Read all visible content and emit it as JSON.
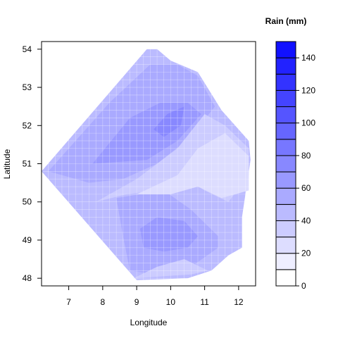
{
  "chart_data": {
    "type": "filled-contour",
    "title": "",
    "xlabel": "Longitude",
    "ylabel": "Latitude",
    "xlim": [
      6.2,
      12.5
    ],
    "ylim": [
      47.8,
      54.2
    ],
    "x_ticks": [
      7,
      8,
      9,
      10,
      11,
      12
    ],
    "y_ticks": [
      48,
      49,
      50,
      51,
      52,
      53,
      54
    ],
    "grid": true,
    "colorbar": {
      "title": "Rain (mm)",
      "range": [
        0,
        150
      ],
      "breaks": [
        0,
        10,
        20,
        30,
        40,
        50,
        60,
        70,
        80,
        90,
        100,
        110,
        120,
        130,
        140,
        150
      ],
      "tick_labels": [
        "0",
        "20",
        "40",
        "60",
        "80",
        "100",
        "120",
        "140"
      ],
      "tick_values": [
        0,
        20,
        40,
        60,
        80,
        100,
        120,
        140
      ],
      "low_color": "#ffffff",
      "high_color": "#0000ff"
    },
    "regions": [
      {
        "level": 40,
        "polygon": [
          [
            6.2,
            50.8
          ],
          [
            9.3,
            54.0
          ],
          [
            9.6,
            54.0
          ],
          [
            10.0,
            53.7
          ],
          [
            10.8,
            53.4
          ],
          [
            11.5,
            52.4
          ],
          [
            12.3,
            51.6
          ],
          [
            12.35,
            51.1
          ],
          [
            12.1,
            49.6
          ],
          [
            12.1,
            48.8
          ],
          [
            11.7,
            48.6
          ],
          [
            11.2,
            48.2
          ],
          [
            10.5,
            48.0
          ],
          [
            9.0,
            47.95
          ],
          [
            6.2,
            50.8
          ]
        ]
      },
      {
        "level": 50,
        "polygon": [
          [
            6.4,
            50.8
          ],
          [
            8.2,
            52.6
          ],
          [
            9.4,
            53.6
          ],
          [
            10.2,
            53.6
          ],
          [
            10.8,
            53.3
          ],
          [
            11.3,
            52.5
          ],
          [
            10.6,
            51.7
          ],
          [
            9.6,
            51.0
          ],
          [
            8.6,
            50.6
          ],
          [
            7.6,
            50.5
          ],
          [
            6.4,
            50.8
          ]
        ]
      },
      {
        "level": 50,
        "polygon": [
          [
            8.4,
            50.1
          ],
          [
            9.8,
            50.3
          ],
          [
            10.6,
            49.8
          ],
          [
            11.4,
            49.1
          ],
          [
            11.4,
            48.8
          ],
          [
            10.6,
            48.3
          ],
          [
            9.6,
            48.1
          ],
          [
            8.8,
            48.2
          ],
          [
            8.6,
            49.1
          ],
          [
            8.4,
            50.1
          ]
        ]
      },
      {
        "level": 60,
        "polygon": [
          [
            7.7,
            51.0
          ],
          [
            8.8,
            52.2
          ],
          [
            9.7,
            52.6
          ],
          [
            10.5,
            52.6
          ],
          [
            10.9,
            52.3
          ],
          [
            10.2,
            51.6
          ],
          [
            9.3,
            51.1
          ],
          [
            7.7,
            51.0
          ]
        ]
      },
      {
        "level": 70,
        "polygon": [
          [
            9.5,
            51.9
          ],
          [
            9.9,
            52.3
          ],
          [
            10.4,
            52.5
          ],
          [
            10.3,
            52.0
          ],
          [
            9.8,
            51.7
          ],
          [
            9.5,
            51.9
          ]
        ]
      },
      {
        "level": 60,
        "polygon": [
          [
            9.1,
            49.3
          ],
          [
            9.6,
            49.6
          ],
          [
            10.4,
            49.5
          ],
          [
            10.8,
            49.1
          ],
          [
            10.5,
            48.8
          ],
          [
            9.8,
            48.7
          ],
          [
            9.2,
            48.8
          ],
          [
            9.1,
            49.3
          ]
        ]
      },
      {
        "level": 30,
        "polygon": [
          [
            7.8,
            50.0
          ],
          [
            9.0,
            50.6
          ],
          [
            10.2,
            51.4
          ],
          [
            11.0,
            52.3
          ],
          [
            11.6,
            52.0
          ],
          [
            12.3,
            51.4
          ],
          [
            12.3,
            50.7
          ],
          [
            11.7,
            50.0
          ],
          [
            11.0,
            50.3
          ],
          [
            10.5,
            50.6
          ],
          [
            9.6,
            50.3
          ],
          [
            8.7,
            50.2
          ],
          [
            7.8,
            50.0
          ]
        ]
      },
      {
        "level": 20,
        "polygon": [
          [
            9.0,
            50.2
          ],
          [
            10.2,
            50.7
          ],
          [
            10.8,
            51.4
          ],
          [
            11.6,
            51.8
          ],
          [
            12.3,
            51.2
          ],
          [
            12.3,
            50.3
          ],
          [
            11.5,
            50.1
          ],
          [
            10.8,
            50.4
          ],
          [
            10.0,
            50.2
          ],
          [
            9.0,
            50.2
          ]
        ]
      },
      {
        "level": 30,
        "polygon": [
          [
            8.9,
            48.0
          ],
          [
            10.6,
            48.1
          ],
          [
            11.1,
            48.2
          ],
          [
            10.4,
            48.5
          ],
          [
            9.6,
            48.3
          ],
          [
            8.9,
            48.0
          ]
        ]
      }
    ]
  }
}
